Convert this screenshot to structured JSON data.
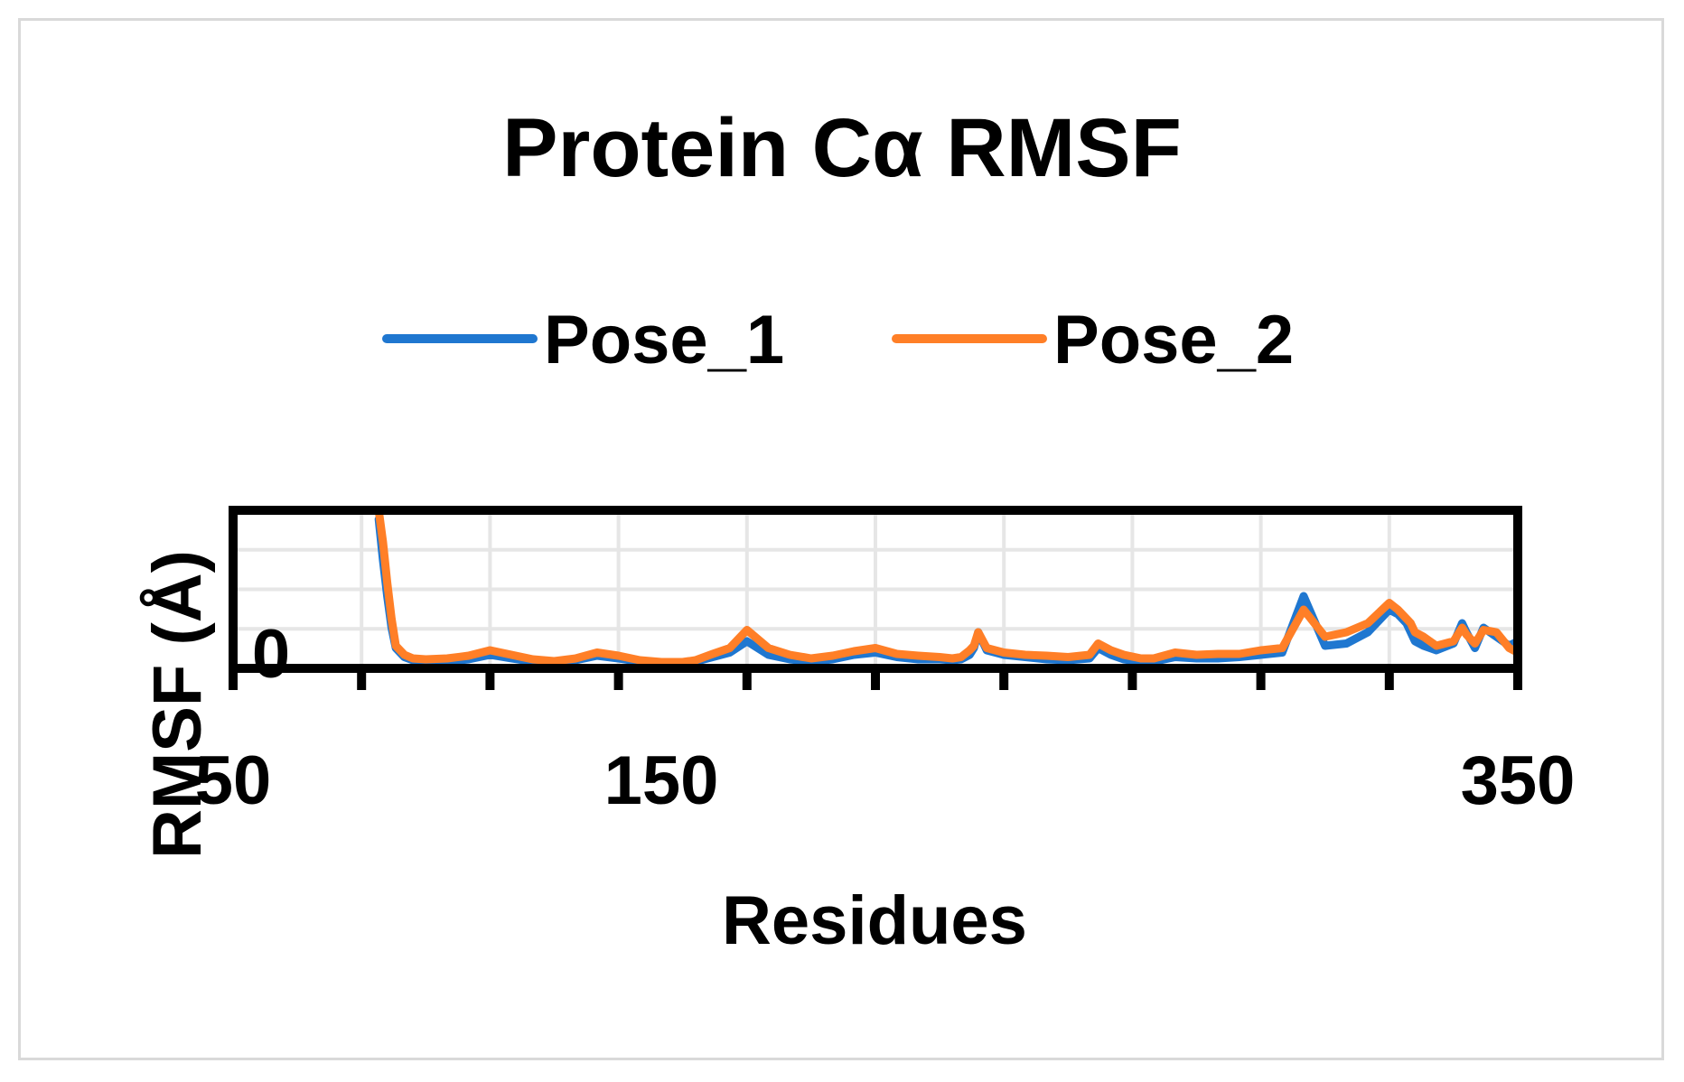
{
  "chart_data": {
    "type": "line",
    "title": "Protein Cα RMSF",
    "xlabel": "Residues",
    "ylabel": "RMSF (Å)",
    "xlim": [
      50,
      350
    ],
    "ylim": [
      0,
      3.5
    ],
    "x_ticks": [
      50,
      150,
      350
    ],
    "y_ticks": [
      0
    ],
    "grid": true,
    "legend": "top",
    "colors": {
      "Pose_1": "#1f77d0",
      "Pose_2": "#ff7f27"
    },
    "series": [
      {
        "name": "Pose_1",
        "x": [
          84,
          85,
          86,
          87,
          88,
          90,
          92,
          95,
          100,
          105,
          110,
          115,
          120,
          125,
          130,
          135,
          140,
          145,
          150,
          155,
          158,
          162,
          166,
          170,
          175,
          180,
          185,
          190,
          195,
          200,
          205,
          210,
          215,
          218,
          220,
          222,
          223,
          224,
          226,
          230,
          235,
          240,
          245,
          250,
          252,
          255,
          258,
          262,
          265,
          270,
          275,
          280,
          285,
          290,
          295,
          300,
          305,
          310,
          315,
          320,
          322,
          324,
          325,
          326,
          328,
          331,
          335,
          337,
          338,
          340,
          342,
          345,
          348,
          350
        ],
        "values": [
          3.3,
          2.4,
          1.6,
          0.9,
          0.45,
          0.25,
          0.18,
          0.15,
          0.15,
          0.2,
          0.3,
          0.22,
          0.15,
          0.12,
          0.18,
          0.28,
          0.22,
          0.15,
          0.12,
          0.12,
          0.15,
          0.25,
          0.35,
          0.6,
          0.3,
          0.2,
          0.15,
          0.2,
          0.3,
          0.35,
          0.25,
          0.2,
          0.2,
          0.18,
          0.2,
          0.3,
          0.45,
          0.8,
          0.4,
          0.3,
          0.25,
          0.2,
          0.18,
          0.22,
          0.45,
          0.3,
          0.2,
          0.15,
          0.15,
          0.25,
          0.22,
          0.22,
          0.25,
          0.3,
          0.35,
          1.6,
          0.5,
          0.55,
          0.8,
          1.3,
          1.2,
          1.0,
          0.8,
          0.6,
          0.5,
          0.4,
          0.55,
          1.0,
          0.8,
          0.45,
          0.9,
          0.7,
          0.5,
          0.6
        ]
      },
      {
        "name": "Pose_2",
        "x": [
          84,
          85,
          86,
          87,
          88,
          90,
          92,
          95,
          100,
          105,
          110,
          115,
          120,
          125,
          130,
          135,
          140,
          145,
          150,
          155,
          158,
          162,
          166,
          170,
          175,
          180,
          185,
          190,
          195,
          200,
          205,
          210,
          215,
          218,
          220,
          222,
          223,
          224,
          226,
          230,
          235,
          240,
          245,
          250,
          252,
          255,
          258,
          262,
          265,
          270,
          275,
          280,
          285,
          290,
          295,
          300,
          305,
          310,
          315,
          320,
          322,
          324,
          325,
          326,
          328,
          331,
          335,
          337,
          338,
          340,
          342,
          345,
          348,
          350
        ],
        "values": [
          3.5,
          2.8,
          1.9,
          1.1,
          0.5,
          0.3,
          0.22,
          0.2,
          0.22,
          0.28,
          0.4,
          0.3,
          0.2,
          0.16,
          0.22,
          0.35,
          0.28,
          0.18,
          0.14,
          0.14,
          0.18,
          0.32,
          0.45,
          0.85,
          0.45,
          0.3,
          0.22,
          0.28,
          0.38,
          0.45,
          0.32,
          0.28,
          0.25,
          0.22,
          0.25,
          0.4,
          0.5,
          0.8,
          0.45,
          0.35,
          0.3,
          0.28,
          0.25,
          0.3,
          0.55,
          0.4,
          0.3,
          0.22,
          0.22,
          0.35,
          0.3,
          0.32,
          0.32,
          0.4,
          0.45,
          1.3,
          0.7,
          0.8,
          1.0,
          1.45,
          1.3,
          1.1,
          1.0,
          0.8,
          0.7,
          0.5,
          0.6,
          0.9,
          0.75,
          0.55,
          0.85,
          0.8,
          0.45,
          0.35
        ]
      }
    ]
  }
}
